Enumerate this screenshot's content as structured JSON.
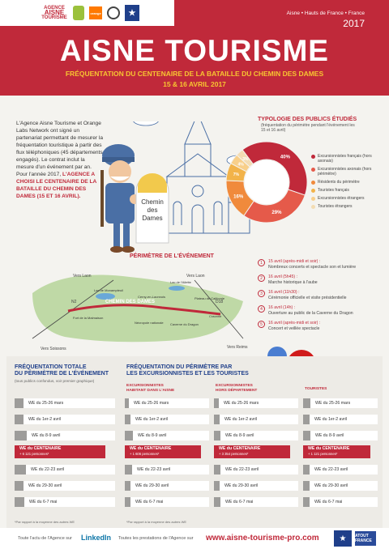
{
  "header": {
    "logo_agence_line1": "AGENCE",
    "logo_agence_line2": "AISNE",
    "logo_agence_line3": "TOURISME",
    "logo_orange": "orange",
    "region": "Aisne • Hauts de France • France",
    "year": "2017",
    "title": "AISNE TOURISME",
    "subtitle": "FRÉQUENTATION DU CENTENAIRE DE LA BATAILLE DU CHEMIN DES DAMES",
    "dates": "15 & 16 AVRIL 2017"
  },
  "intro": {
    "text": "L'Agence Aisne Tourisme et Orange Labs Network ont signé un partenariat permettant de mesurer la fréquentation touristique à partir des flux téléphoniques (45 départements engagés). Le contrat inclut la mesure d'un événement par an. Pour l'année 2017, ",
    "highlight": "L'AGENCE A CHOISI LE CENTENAIRE DE LA BATAILLE DU CHEMIN DES DAMES (15 ET 16 AVRIL)."
  },
  "illustration": {
    "sign_line1": "Chemin",
    "sign_line2": "des",
    "sign_line3": "Dames"
  },
  "publics": {
    "title": "TYPOLOGIE DES PUBLICS ÉTUDIÉS",
    "subtitle": "(fréquentation du périmètre pendant l'événement les 15 et 16 avril)",
    "colors": [
      "#c0293a",
      "#e55a4a",
      "#f08a3c",
      "#f2b34a",
      "#f8cf8a",
      "#f3dcb3"
    ],
    "labels": [
      "Excursionnistes français (hors axonais)",
      "Excursionnistes axonais (hors périmètre)",
      "Résidents du périmètre",
      "Touristes français",
      "Excursionnistes étrangers",
      "Touristes étrangers"
    ],
    "percent_labels": [
      "40%",
      "29%",
      "16%",
      "7%",
      "4%",
      "3%"
    ]
  },
  "chart_data": {
    "type": "pie",
    "title": "TYPOLOGIE DES PUBLICS ÉTUDIÉS",
    "categories": [
      "Excursionnistes français (hors axonais)",
      "Excursionnistes axonais (hors périmètre)",
      "Résidents du périmètre",
      "Touristes français",
      "Excursionnistes étrangers",
      "Touristes étrangers"
    ],
    "values": [
      40,
      29,
      16,
      7,
      4,
      3
    ],
    "legend": "right"
  },
  "perimeter": {
    "title": "PÉRIMÈTRE DE L'ÉVÉNEMENT",
    "road_laon": "Vers Laon",
    "road_soissons": "Vers Soissons",
    "road_reims": "Vers Reims",
    "road_n2": "N2",
    "road_d18": "D18",
    "road_label": "CHEMIN DES DAMES",
    "places": [
      "Lac de Monampteuil",
      "Fort de la Malmaison",
      "Cerny-en-Laonnois",
      "Nécropole nationale",
      "Lac de l'Ailette",
      "Plateau de Californie",
      "Caverne du Dragon",
      "Craonne"
    ],
    "events": [
      {
        "num": "1",
        "time": "15 avril (après-midi et soir) :",
        "desc": "Nombreux concerts et spectacle son et lumière"
      },
      {
        "num": "2",
        "time": "16 avril (5h45) :",
        "desc": "Marche historique à l'aube"
      },
      {
        "num": "3",
        "time": "16 avril (11h30) :",
        "desc": "Cérémonie officielle et visite présidentielle"
      },
      {
        "num": "4",
        "time": "16 avril (14h) :",
        "desc": "Ouverture au public de la Caverne du Dragon"
      },
      {
        "num": "5",
        "time": "16 avril (après-midi et soir) :",
        "desc": "Concert et veillée spectacle"
      }
    ]
  },
  "frequentation": {
    "total_title_line1": "FRÉQUENTATION TOTALE",
    "total_title_line2": "DU PÉRIMÈTRE DE L'ÉVÉNEMENT",
    "total_sub": "(tous publics confondus, voir premier graphique)",
    "perim_title_line1": "FRÉQUENTATION DU PÉRIMÈTRE PAR",
    "perim_title_line2": "LES EXCURSIONNISTES ET LES TOURISTES",
    "col_heads": [
      {
        "line1": "EXCURSIONNISTES",
        "line2": "HABITANT DANS L'AISNE"
      },
      {
        "line1": "EXCURSIONNISTES",
        "line2": "HORS DÉPARTEMENT"
      },
      {
        "line1": "TOURISTES",
        "line2": ""
      }
    ],
    "we_labels": [
      "WE du 25-26 mars",
      "WE du 1er-2 avril",
      "WE du 8-9 avril",
      "WE du CENTENAIRE",
      "WE du 22-23 avril",
      "WE du 29-30 avril",
      "WE du 6-7 mai"
    ],
    "centenaire_values": [
      "+ 6 121 personnes*",
      "+ 1 606 personnes*",
      "+ 3 354 personnes*",
      "+ 1 121 personnes*"
    ],
    "columns": [
      {
        "values": [
          0.09,
          0.09,
          0.12,
          0.3,
          0.11,
          0.09,
          0.1
        ]
      },
      {
        "values": [
          0.05,
          0.07,
          0.1,
          0.3,
          0.09,
          0.07,
          0.07
        ]
      },
      {
        "values": [
          0.06,
          0.07,
          0.08,
          0.3,
          0.08,
          0.07,
          0.08
        ]
      },
      {
        "values": [
          0.1,
          0.09,
          0.1,
          0.3,
          0.09,
          0.09,
          0.09
        ]
      }
    ],
    "note": "*Par rapport à la moyenne des autres WE"
  },
  "footer": {
    "text1": "Toute l'actu de l'Agence sur",
    "linkedin": "LinkedIn",
    "text2": "Toutes les prestations de l'Agence sur",
    "url": "www.aisne-tourisme-pro.com",
    "logo2": "ATOUT FRANCE"
  }
}
